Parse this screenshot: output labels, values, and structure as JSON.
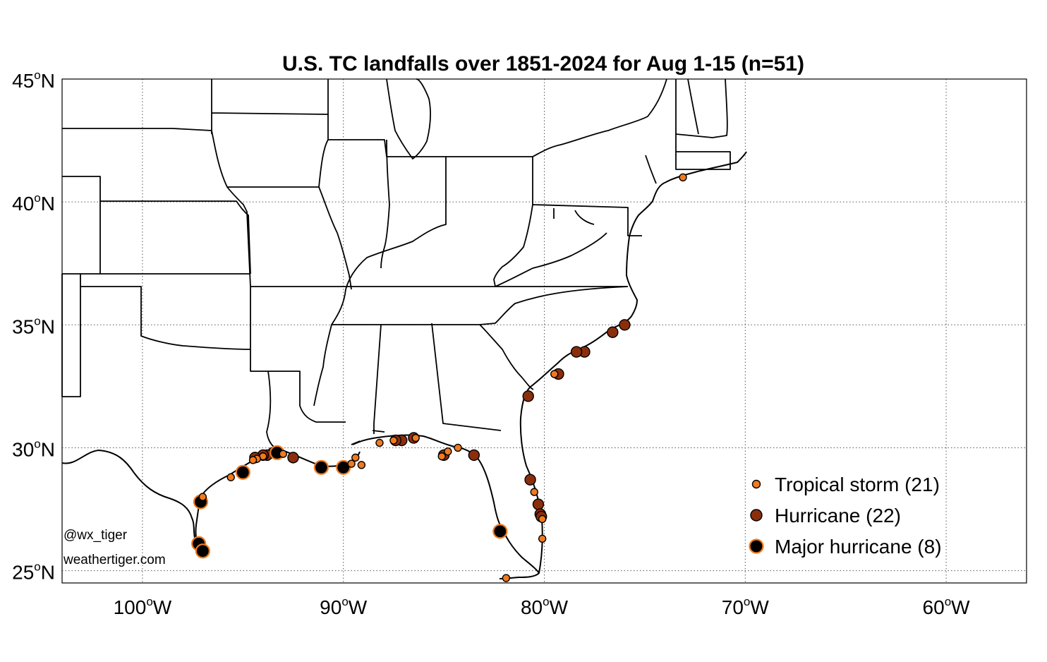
{
  "title": "U.S. TC landfalls over 1851-2024 for Aug 1-15 (n=51)",
  "axes": {
    "lon_range": [
      -104,
      -56
    ],
    "lat_range": [
      24.5,
      45
    ],
    "lon_ticks": [
      {
        "value": -100,
        "num": "100",
        "sup": "o",
        "dir": "W"
      },
      {
        "value": -90,
        "num": "90",
        "sup": "o",
        "dir": "W"
      },
      {
        "value": -80,
        "num": "80",
        "sup": "o",
        "dir": "W"
      },
      {
        "value": -70,
        "num": "70",
        "sup": "o",
        "dir": "W"
      },
      {
        "value": -60,
        "num": "60",
        "sup": "o",
        "dir": "W"
      }
    ],
    "lat_ticks": [
      {
        "value": 45,
        "num": "45",
        "sup": "o",
        "dir": "N"
      },
      {
        "value": 40,
        "num": "40",
        "sup": "o",
        "dir": "N"
      },
      {
        "value": 35,
        "num": "35",
        "sup": "o",
        "dir": "N"
      },
      {
        "value": 30,
        "num": "30",
        "sup": "o",
        "dir": "N"
      },
      {
        "value": 25,
        "num": "25",
        "sup": "o",
        "dir": "N"
      }
    ],
    "grid": true
  },
  "legend": {
    "position": "bottom-right",
    "items": [
      {
        "key": "ts",
        "label": "Tropical storm (21)"
      },
      {
        "key": "hu",
        "label": "Hurricane (22)"
      },
      {
        "key": "mh",
        "label": "Major hurricane (8)"
      }
    ]
  },
  "credits": {
    "line1": "@wx_tiger",
    "line2": "weathertiger.com"
  },
  "colors": {
    "ts_fill": "#f07a1e",
    "hu_fill": "#8b2e0c",
    "mh_fill": "#000000",
    "mh_edge": "#f07a1e",
    "outline": "#000000"
  },
  "chart_data": {
    "type": "scatter",
    "series": [
      {
        "name": "Tropical storm (21)",
        "category": "ts",
        "points": [
          {
            "lon": -73.1,
            "lat": 41.0
          },
          {
            "lon": -79.5,
            "lat": 33.0
          },
          {
            "lon": -80.5,
            "lat": 28.2
          },
          {
            "lon": -80.1,
            "lat": 27.1
          },
          {
            "lon": -80.1,
            "lat": 26.3
          },
          {
            "lon": -81.9,
            "lat": 24.7
          },
          {
            "lon": -84.3,
            "lat": 30.0
          },
          {
            "lon": -84.8,
            "lat": 29.85
          },
          {
            "lon": -85.1,
            "lat": 29.65
          },
          {
            "lon": -86.4,
            "lat": 30.4
          },
          {
            "lon": -87.5,
            "lat": 30.3
          },
          {
            "lon": -88.2,
            "lat": 30.2
          },
          {
            "lon": -89.1,
            "lat": 29.3
          },
          {
            "lon": -89.4,
            "lat": 29.6
          },
          {
            "lon": -89.6,
            "lat": 29.35
          },
          {
            "lon": -93.0,
            "lat": 29.75
          },
          {
            "lon": -94.0,
            "lat": 29.65
          },
          {
            "lon": -94.3,
            "lat": 29.55
          },
          {
            "lon": -94.5,
            "lat": 29.5
          },
          {
            "lon": -95.6,
            "lat": 28.8
          },
          {
            "lon": -97.0,
            "lat": 28.0
          }
        ]
      },
      {
        "name": "Hurricane (22)",
        "category": "hu",
        "points": [
          {
            "lon": -76.0,
            "lat": 35.0
          },
          {
            "lon": -76.6,
            "lat": 34.7
          },
          {
            "lon": -78.0,
            "lat": 33.9
          },
          {
            "lon": -78.4,
            "lat": 33.9
          },
          {
            "lon": -79.3,
            "lat": 33.0
          },
          {
            "lon": -80.8,
            "lat": 32.1
          },
          {
            "lon": -80.7,
            "lat": 28.7
          },
          {
            "lon": -80.3,
            "lat": 27.7
          },
          {
            "lon": -80.2,
            "lat": 27.3
          },
          {
            "lon": -80.15,
            "lat": 27.2
          },
          {
            "lon": -83.5,
            "lat": 29.7
          },
          {
            "lon": -85.0,
            "lat": 29.7
          },
          {
            "lon": -86.5,
            "lat": 30.4
          },
          {
            "lon": -87.1,
            "lat": 30.3
          },
          {
            "lon": -87.4,
            "lat": 30.3
          },
          {
            "lon": -92.5,
            "lat": 29.6
          },
          {
            "lon": -93.5,
            "lat": 29.8
          },
          {
            "lon": -93.8,
            "lat": 29.7
          },
          {
            "lon": -94.0,
            "lat": 29.7
          },
          {
            "lon": -94.4,
            "lat": 29.6
          },
          {
            "lon": -97.1,
            "lat": 27.8
          },
          {
            "lon": -97.2,
            "lat": 26.1
          }
        ]
      },
      {
        "name": "Major hurricane (8)",
        "category": "mh",
        "points": [
          {
            "lon": -82.2,
            "lat": 26.6
          },
          {
            "lon": -90.0,
            "lat": 29.2
          },
          {
            "lon": -91.1,
            "lat": 29.2
          },
          {
            "lon": -93.3,
            "lat": 29.8
          },
          {
            "lon": -95.0,
            "lat": 29.0
          },
          {
            "lon": -97.1,
            "lat": 27.8
          },
          {
            "lon": -97.2,
            "lat": 26.1
          },
          {
            "lon": -97.0,
            "lat": 25.8
          }
        ]
      }
    ]
  }
}
